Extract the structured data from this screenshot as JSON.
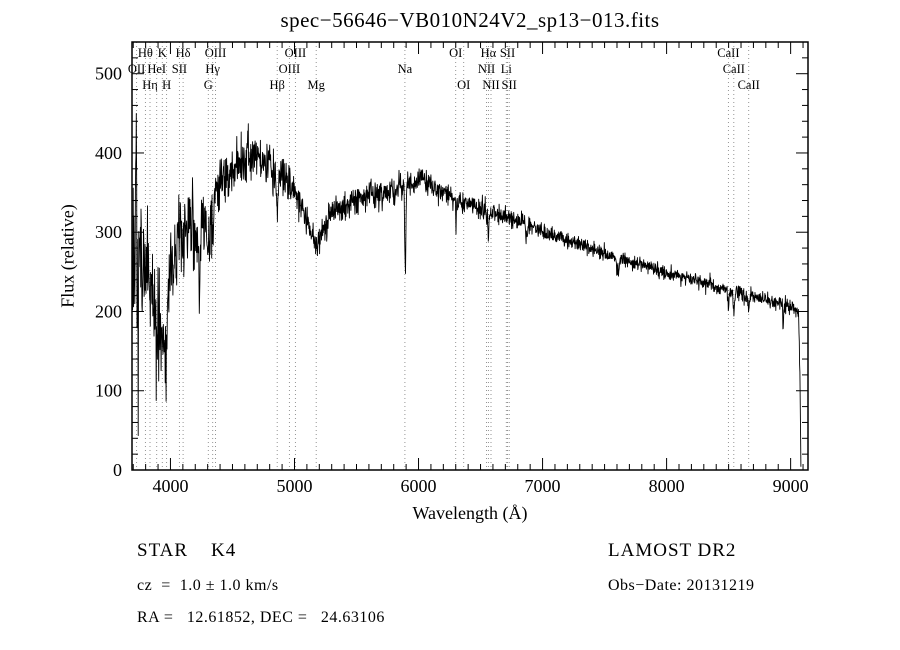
{
  "chart_data": {
    "type": "line",
    "title": "spec−56646−VB010N24V2_sp13−013.fits",
    "xlabel": "Wavelength (Å)",
    "ylabel": "Flux (relative)",
    "xlim": [
      3690,
      9140
    ],
    "ylim": [
      0,
      540
    ],
    "xticks": [
      4000,
      5000,
      6000,
      7000,
      8000,
      9000
    ],
    "yticks": [
      0,
      100,
      200,
      300,
      400,
      500
    ],
    "x_minor_step": 100,
    "y_minor_step": 20,
    "grid": false,
    "line_color": "#000000",
    "marker_line_color": "#888888",
    "spectral_lines": [
      {
        "wavelength": 3727,
        "label": "OII",
        "row": 2
      },
      {
        "wavelength": 3798,
        "label": "Hθ",
        "row": 1
      },
      {
        "wavelength": 3835,
        "label": "Hη",
        "row": 3
      },
      {
        "wavelength": 3889,
        "label": "HeI",
        "row": 2
      },
      {
        "wavelength": 3934,
        "label": "K",
        "row": 1
      },
      {
        "wavelength": 3969,
        "label": "H",
        "row": 3
      },
      {
        "wavelength": 4072,
        "label": "SII",
        "row": 2
      },
      {
        "wavelength": 4102,
        "label": "Hδ",
        "row": 1
      },
      {
        "wavelength": 4305,
        "label": "G",
        "row": 3
      },
      {
        "wavelength": 4341,
        "label": "Hγ",
        "row": 2
      },
      {
        "wavelength": 4363,
        "label": "OIII",
        "row": 1
      },
      {
        "wavelength": 4861,
        "label": "Hβ",
        "row": 3
      },
      {
        "wavelength": 4959,
        "label": "OIII",
        "row": 2
      },
      {
        "wavelength": 5007,
        "label": "OIII",
        "row": 1
      },
      {
        "wavelength": 5175,
        "label": "Mg",
        "row": 3
      },
      {
        "wavelength": 5890,
        "label": "Na",
        "row": 2
      },
      {
        "wavelength": 6300,
        "label": "OI",
        "row": 1
      },
      {
        "wavelength": 6364,
        "label": "OI",
        "row": 3
      },
      {
        "wavelength": 6548,
        "label": "NII",
        "row": 2
      },
      {
        "wavelength": 6563,
        "label": "Hα",
        "row": 1
      },
      {
        "wavelength": 6584,
        "label": "NII",
        "row": 3
      },
      {
        "wavelength": 6708,
        "label": "Li",
        "row": 2
      },
      {
        "wavelength": 6717,
        "label": "SII",
        "row": 1
      },
      {
        "wavelength": 6731,
        "label": "SII",
        "row": 3
      },
      {
        "wavelength": 8498,
        "label": "CaII",
        "row": 1
      },
      {
        "wavelength": 8542,
        "label": "CaII",
        "row": 2
      },
      {
        "wavelength": 8662,
        "label": "CaII",
        "row": 3
      }
    ],
    "spectrum_model": {
      "seed": 56646,
      "step": 2.5,
      "wl_start": 3695,
      "wl_end": 9084,
      "continuum": [
        [
          3695,
          260
        ],
        [
          3730,
          280
        ],
        [
          3770,
          270
        ],
        [
          3810,
          260
        ],
        [
          3850,
          240
        ],
        [
          3900,
          215
        ],
        [
          3950,
          200
        ],
        [
          4000,
          245
        ],
        [
          4050,
          290
        ],
        [
          4100,
          315
        ],
        [
          4140,
          310
        ],
        [
          4180,
          290
        ],
        [
          4227,
          300
        ],
        [
          4270,
          315
        ],
        [
          4310,
          320
        ],
        [
          4350,
          345
        ],
        [
          4400,
          360
        ],
        [
          4450,
          370
        ],
        [
          4500,
          375
        ],
        [
          4560,
          385
        ],
        [
          4620,
          395
        ],
        [
          4680,
          395
        ],
        [
          4740,
          390
        ],
        [
          4800,
          380
        ],
        [
          4860,
          370
        ],
        [
          4900,
          370
        ],
        [
          4950,
          360
        ],
        [
          5000,
          350
        ],
        [
          5060,
          330
        ],
        [
          5120,
          305
        ],
        [
          5170,
          292
        ],
        [
          5220,
          300
        ],
        [
          5280,
          320
        ],
        [
          5350,
          330
        ],
        [
          5450,
          338
        ],
        [
          5550,
          343
        ],
        [
          5650,
          348
        ],
        [
          5750,
          352
        ],
        [
          5850,
          357
        ],
        [
          5950,
          362
        ],
        [
          6020,
          368
        ],
        [
          6100,
          360
        ],
        [
          6200,
          350
        ],
        [
          6300,
          342
        ],
        [
          6400,
          336
        ],
        [
          6500,
          330
        ],
        [
          6563,
          326
        ],
        [
          6650,
          322
        ],
        [
          6750,
          317
        ],
        [
          6850,
          311
        ],
        [
          6950,
          304
        ],
        [
          7050,
          298
        ],
        [
          7150,
          292
        ],
        [
          7250,
          287
        ],
        [
          7350,
          281
        ],
        [
          7450,
          276
        ],
        [
          7550,
          271
        ],
        [
          7650,
          266
        ],
        [
          7750,
          261
        ],
        [
          7850,
          256
        ],
        [
          7950,
          251
        ],
        [
          8050,
          246
        ],
        [
          8150,
          242
        ],
        [
          8250,
          238
        ],
        [
          8350,
          233
        ],
        [
          8450,
          229
        ],
        [
          8550,
          224
        ],
        [
          8650,
          220
        ],
        [
          8750,
          216
        ],
        [
          8850,
          212
        ],
        [
          8950,
          209
        ],
        [
          9040,
          205
        ],
        [
          9065,
          195
        ],
        [
          9075,
          120
        ],
        [
          9082,
          15
        ]
      ],
      "noise_sigma": [
        [
          3695,
          52
        ],
        [
          3750,
          48
        ],
        [
          3800,
          44
        ],
        [
          3850,
          42
        ],
        [
          3900,
          40
        ],
        [
          3960,
          36
        ],
        [
          4020,
          30
        ],
        [
          4100,
          26
        ],
        [
          4200,
          22
        ],
        [
          4300,
          19
        ],
        [
          4400,
          16
        ],
        [
          4500,
          14
        ],
        [
          4650,
          13
        ],
        [
          4800,
          12
        ],
        [
          4950,
          11
        ],
        [
          5100,
          10
        ],
        [
          5300,
          9.5
        ],
        [
          5500,
          9
        ],
        [
          5700,
          8.5
        ],
        [
          5900,
          8
        ],
        [
          6100,
          7.5
        ],
        [
          6300,
          7
        ],
        [
          6500,
          6.5
        ],
        [
          6800,
          5.5
        ],
        [
          7100,
          5
        ],
        [
          7400,
          4.5
        ],
        [
          7700,
          4.5
        ],
        [
          8000,
          4.5
        ],
        [
          8300,
          4.5
        ],
        [
          8600,
          5
        ],
        [
          8900,
          5
        ],
        [
          9084,
          4
        ]
      ],
      "absorption_lines": [
        {
          "center": 3798,
          "depth": 30,
          "sigma": 7
        },
        {
          "center": 3835,
          "depth": 30,
          "sigma": 7
        },
        {
          "center": 3889,
          "depth": 40,
          "sigma": 7
        },
        {
          "center": 3934,
          "depth": 70,
          "sigma": 9
        },
        {
          "center": 3969,
          "depth": 65,
          "sigma": 9
        },
        {
          "center": 4102,
          "depth": 35,
          "sigma": 8
        },
        {
          "center": 4227,
          "depth": 35,
          "sigma": 8
        },
        {
          "center": 4305,
          "depth": 45,
          "sigma": 11
        },
        {
          "center": 4341,
          "depth": 35,
          "sigma": 7
        },
        {
          "center": 4861,
          "depth": 35,
          "sigma": 8
        },
        {
          "center": 5175,
          "depth": 18,
          "sigma": 12
        },
        {
          "center": 5893,
          "depth": 115,
          "sigma": 4.5
        },
        {
          "center": 6563,
          "depth": 28,
          "sigma": 6
        },
        {
          "center": 6870,
          "depth": 16,
          "sigma": 7
        },
        {
          "center": 7605,
          "depth": 20,
          "sigma": 9
        },
        {
          "center": 8498,
          "depth": 22,
          "sigma": 5
        },
        {
          "center": 8542,
          "depth": 26,
          "sigma": 5
        },
        {
          "center": 8662,
          "depth": 24,
          "sigma": 5
        }
      ],
      "spikes": [
        {
          "center": 3722,
          "amp": 165,
          "sigma": 2.5
        },
        {
          "center": 3740,
          "amp": -130,
          "sigma": 2.5
        },
        {
          "center": 3905,
          "amp": -90,
          "sigma": 2.5
        },
        {
          "center": 3958,
          "amp": -75,
          "sigma": 3
        },
        {
          "center": 4180,
          "amp": 80,
          "sigma": 2.5
        },
        {
          "center": 4235,
          "amp": -60,
          "sigma": 3
        },
        {
          "center": 6302,
          "amp": -48,
          "sigma": 2
        },
        {
          "center": 8940,
          "amp": -38,
          "sigma": 2.5
        }
      ]
    }
  },
  "annotations": {
    "object_class": "STAR    K4",
    "survey": "LAMOST DR2",
    "velocity": "cz  =  1.0 ± 1.0 km/s",
    "obs_date": "Obs−Date: 20131219",
    "coordinates": "RA =   12.61852, DEC =   24.63106"
  }
}
